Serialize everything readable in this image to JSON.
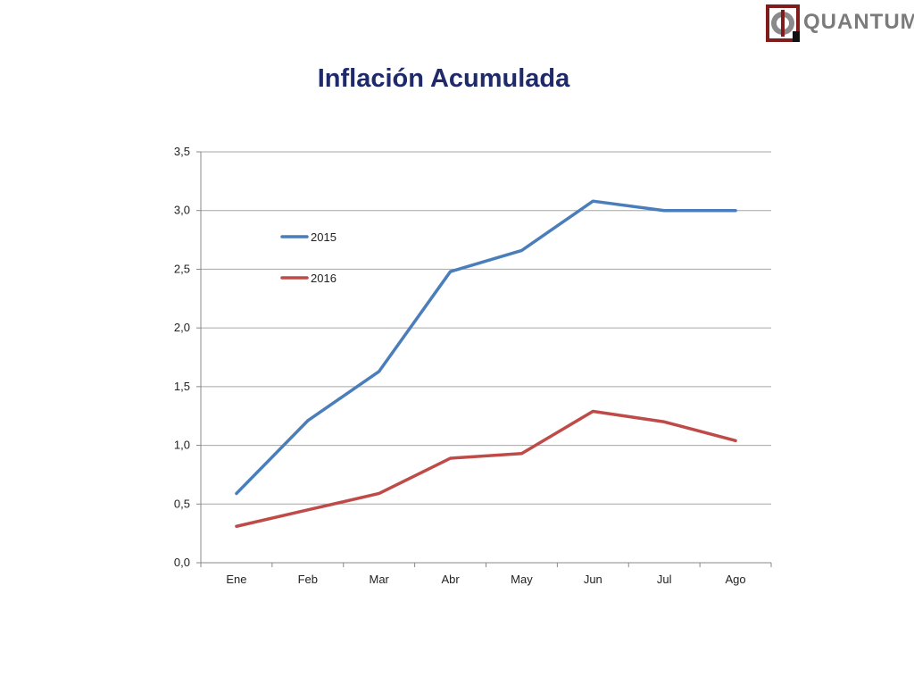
{
  "logo": {
    "text": "QUANTUM"
  },
  "colors": {
    "title": "#1f2a6b",
    "series_2015": "#4a7ebb",
    "series_2016": "#be4b48",
    "grid": "#a6a6a6"
  },
  "chart_data": {
    "type": "line",
    "title": "Inflación Acumulada",
    "xlabel": "",
    "ylabel": "",
    "categories": [
      "Ene",
      "Feb",
      "Mar",
      "Abr",
      "May",
      "Jun",
      "Jul",
      "Ago"
    ],
    "ylim": [
      0,
      3.5
    ],
    "yticks": [
      "0,0",
      "0,5",
      "1,0",
      "1,5",
      "2,0",
      "2,5",
      "3,0",
      "3,5"
    ],
    "grid": true,
    "legend_position": "inside-top-left",
    "series": [
      {
        "name": "2015",
        "color": "#4a7ebb",
        "values": [
          0.59,
          1.21,
          1.63,
          2.48,
          2.66,
          3.08,
          3.0,
          3.0
        ]
      },
      {
        "name": "2016",
        "color": "#be4b48",
        "values": [
          0.31,
          0.45,
          0.59,
          0.89,
          0.93,
          1.29,
          1.2,
          1.04
        ]
      }
    ]
  }
}
